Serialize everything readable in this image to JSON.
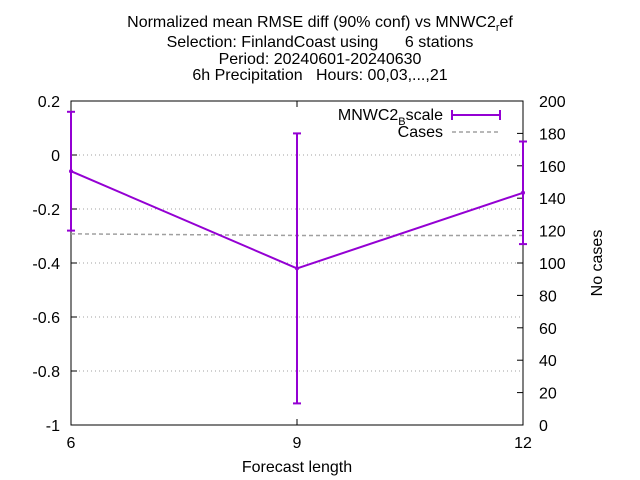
{
  "chart_data": {
    "type": "line",
    "title_lines": [
      "Normalized mean RMSE diff (90% conf) vs MNWC2",
      "Selection: FinlandCoast using      6 stations",
      "Period: 20240601-20240630",
      "6h Precipitation   Hours: 00,03,...,21"
    ],
    "title_ref_sub": "r",
    "title_ref_tail": "ef",
    "xlabel": "Forecast length",
    "y2label": "No cases",
    "x": [
      6,
      9,
      12
    ],
    "xlim": [
      6,
      12
    ],
    "ylim": [
      -1,
      0.2
    ],
    "y2lim": [
      0,
      200
    ],
    "x_ticks": [
      6,
      9,
      12
    ],
    "y_ticks": [
      0.2,
      0,
      -0.2,
      -0.4,
      -0.6,
      -0.8,
      -1
    ],
    "y_tick_labels": [
      "0.2",
      "0",
      "-0.2",
      "-0.4",
      "-0.6",
      "-0.8",
      "-1"
    ],
    "y2_ticks": [
      0,
      20,
      40,
      60,
      80,
      100,
      120,
      140,
      160,
      180,
      200
    ],
    "grid": "horizontal-dotted",
    "legend_position": "top-right",
    "series": [
      {
        "name": "MNWC2_Bscale",
        "legend_main": "MNWC2",
        "legend_sub": "B",
        "legend_tail": "scale",
        "axis": "y",
        "color": "#9400d3",
        "style": "line-errorbars",
        "values": [
          -0.06,
          -0.42,
          -0.14
        ],
        "err_low": [
          -0.28,
          -0.92,
          -0.33
        ],
        "err_high": [
          0.16,
          0.08,
          0.05
        ]
      },
      {
        "name": "Cases",
        "axis": "y2",
        "color": "#a0a0a0",
        "style": "dashed",
        "values": [
          118,
          117,
          117
        ]
      }
    ]
  }
}
